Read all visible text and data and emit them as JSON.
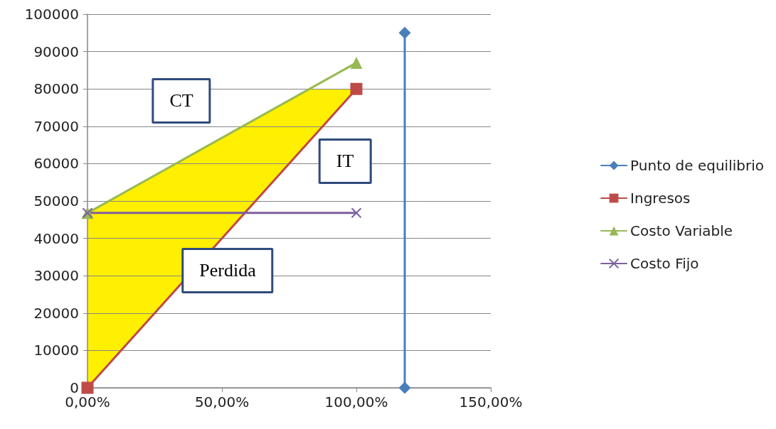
{
  "chart_data": {
    "type": "line",
    "xlim": [
      0,
      150
    ],
    "xticks": [
      {
        "value": 0,
        "label": "0,00%"
      },
      {
        "value": 50,
        "label": "50,00%"
      },
      {
        "value": 100,
        "label": "100,00%"
      },
      {
        "value": 150,
        "label": "150,00%"
      }
    ],
    "ylim": [
      0,
      100000
    ],
    "yticks": [
      0,
      10000,
      20000,
      30000,
      40000,
      50000,
      60000,
      70000,
      80000,
      90000,
      100000
    ],
    "grid": "y",
    "legend": "right",
    "line_style": "solid",
    "series": [
      {
        "name": "Punto de equilibrio",
        "color": "#4a7ebb",
        "marker": "diamond",
        "x": [
          118,
          118
        ],
        "values": [
          95000,
          0
        ]
      },
      {
        "name": "Ingresos",
        "color": "#be4b48",
        "marker": "square",
        "x": [
          0,
          100
        ],
        "values": [
          0,
          80000
        ]
      },
      {
        "name": "Costo Variable",
        "color": "#98b954",
        "marker": "triangle",
        "x": [
          0,
          100
        ],
        "values": [
          46800,
          87000
        ]
      },
      {
        "name": "Costo Fijo",
        "color": "#7d60a0",
        "marker": "cross",
        "x": [
          0,
          100
        ],
        "values": [
          46800,
          46800
        ]
      }
    ],
    "annotations": [
      "CT",
      "IT",
      "Perdida"
    ]
  }
}
